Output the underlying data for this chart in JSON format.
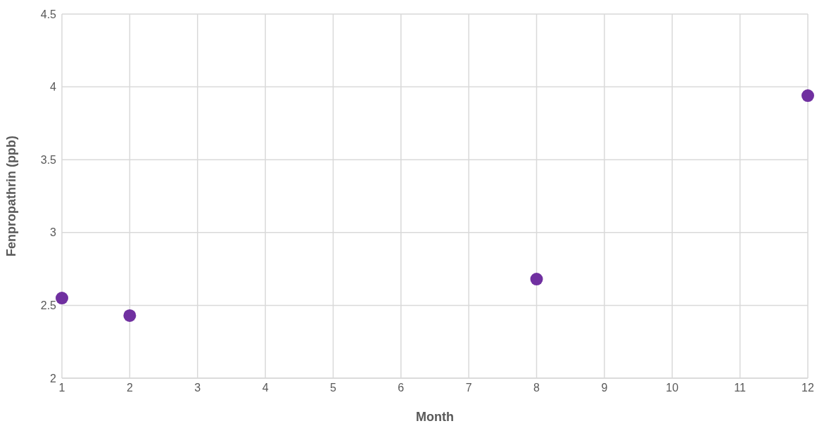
{
  "chart_data": {
    "type": "scatter",
    "xlabel": "Month",
    "ylabel": "Fenpropathrin (ppb)",
    "x": [
      1,
      2,
      8,
      12
    ],
    "values": [
      2.55,
      2.43,
      2.68,
      3.94
    ],
    "color": "#7030a0",
    "xlim": [
      1,
      12
    ],
    "xticks": [
      1,
      2,
      3,
      4,
      5,
      6,
      7,
      8,
      9,
      10,
      11,
      12
    ],
    "ylim": [
      2,
      4.5
    ],
    "yticks": [
      2,
      2.5,
      3,
      3.5,
      4,
      4.5
    ],
    "grid": true,
    "marker": "circle",
    "legend": false
  }
}
